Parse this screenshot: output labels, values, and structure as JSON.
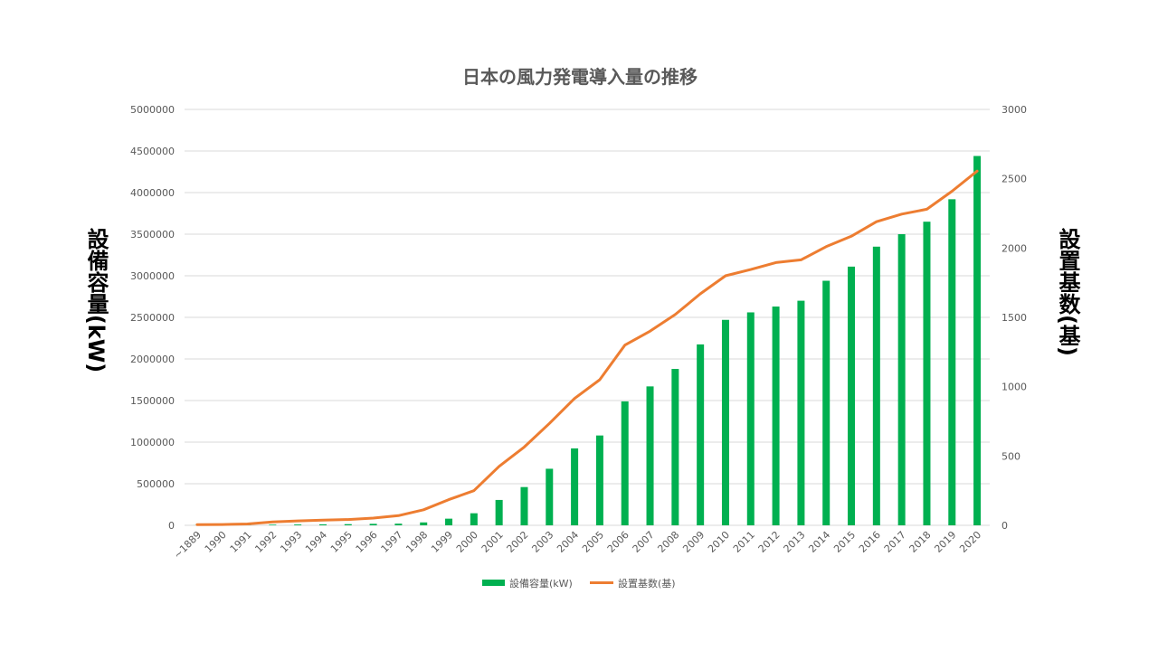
{
  "chart_data": {
    "type": "bar",
    "title": "日本の風力発電導入量の推移",
    "ylabel": "設備容量(kW)",
    "y2label": "設置基数(基)",
    "categories": [
      "~1889",
      "1990",
      "1991",
      "1992",
      "1993",
      "1994",
      "1995",
      "1996",
      "1997",
      "1998",
      "1999",
      "2000",
      "2001",
      "2002",
      "2003",
      "2004",
      "2005",
      "2006",
      "2007",
      "2008",
      "2009",
      "2010",
      "2011",
      "2012",
      "2013",
      "2014",
      "2015",
      "2016",
      "2017",
      "2018",
      "2019",
      "2020"
    ],
    "ylim": [
      0,
      5000000
    ],
    "y_ticks": [
      "0",
      "500000",
      "1000000",
      "1500000",
      "2000000",
      "2500000",
      "3000000",
      "3500000",
      "4000000",
      "4500000",
      "5000000"
    ],
    "y2lim": [
      0,
      3000
    ],
    "y2_ticks": [
      "0",
      "500",
      "1000",
      "1500",
      "2000",
      "2500",
      "3000"
    ],
    "grid": true,
    "legend_position": "bottom",
    "series": [
      {
        "name": "設備容量(kW)",
        "type": "bar",
        "axis": "left",
        "color": "#00b050",
        "values": [
          1000,
          1500,
          3000,
          8000,
          10000,
          12000,
          14000,
          18000,
          20000,
          35000,
          80000,
          145000,
          305000,
          460000,
          680000,
          925000,
          1080000,
          1490000,
          1670000,
          1880000,
          2175000,
          2470000,
          2560000,
          2630000,
          2700000,
          2940000,
          3110000,
          3350000,
          3500000,
          3650000,
          3920000,
          4440000
        ]
      },
      {
        "name": "設置基数(基)",
        "type": "line",
        "axis": "right",
        "color": "#ed7d31",
        "values": [
          5,
          6,
          10,
          25,
          32,
          38,
          42,
          52,
          70,
          112,
          185,
          250,
          425,
          565,
          735,
          915,
          1050,
          1300,
          1400,
          1520,
          1670,
          1800,
          1845,
          1895,
          1915,
          2010,
          2085,
          2190,
          2245,
          2280,
          2410,
          2555
        ]
      }
    ]
  }
}
